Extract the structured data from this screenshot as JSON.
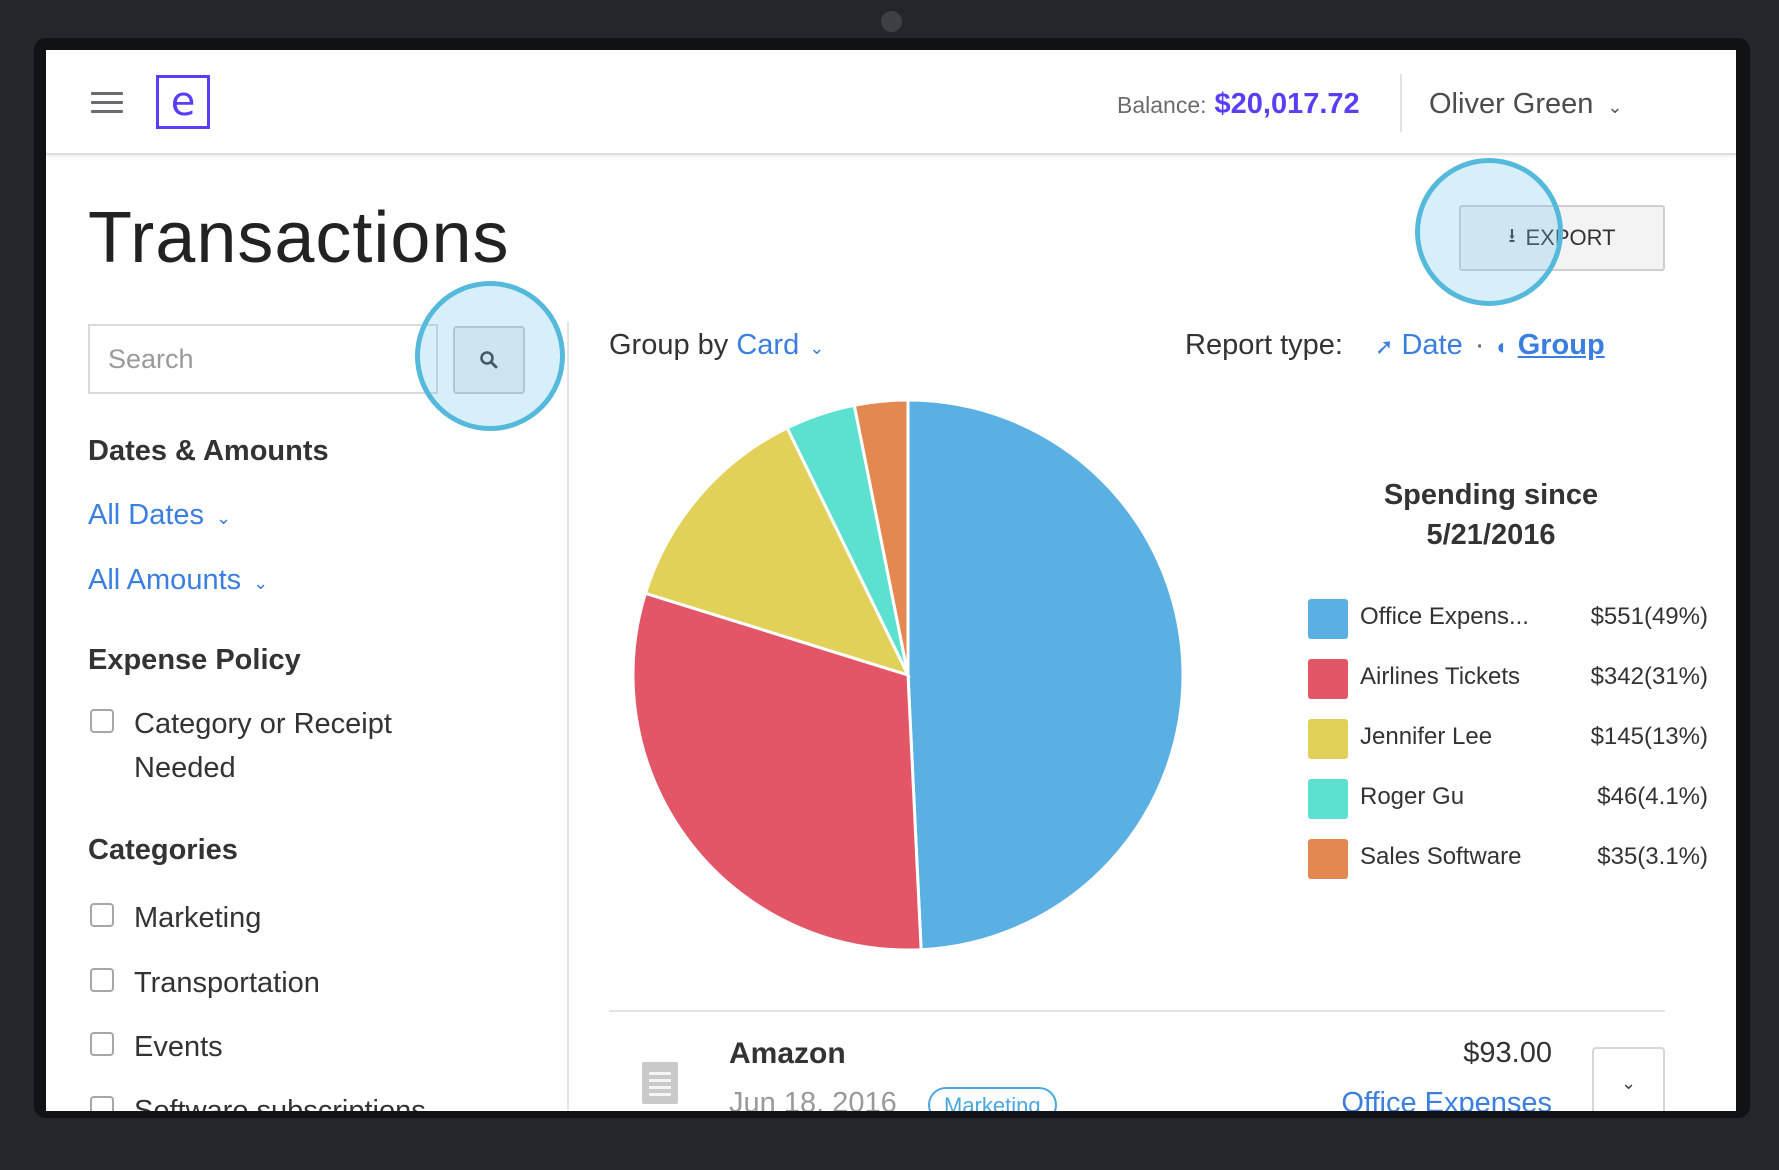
{
  "header": {
    "logo_letter": "e",
    "balance_label": "Balance:",
    "balance_value": "$20,017.72",
    "user_name": "Oliver Green"
  },
  "page": {
    "title": "Transactions",
    "export_label": "EXPORT"
  },
  "search": {
    "placeholder": "Search",
    "value": ""
  },
  "filters": {
    "dates_amounts_heading": "Dates & Amounts",
    "all_dates": "All Dates",
    "all_amounts": "All Amounts",
    "expense_policy_heading": "Expense Policy",
    "policy_option": "Category or Receipt Needed",
    "categories_heading": "Categories",
    "categories": [
      "Marketing",
      "Transportation",
      "Events",
      "Software subscriptions"
    ]
  },
  "report": {
    "group_by_label": "Group by",
    "group_by_value": "Card",
    "report_type_label": "Report type:",
    "date_option": "Date",
    "group_option": "Group",
    "separator": "·"
  },
  "legend_title": "Spending since 5/21/2016",
  "chart_data": {
    "type": "pie",
    "title": "Spending since 5/21/2016",
    "categories": [
      "Office Expens...",
      "Airlines Tickets",
      "Jennifer Lee",
      "Roger Gu",
      "Sales Software"
    ],
    "values": [
      551,
      342,
      145,
      46,
      35
    ],
    "value_labels": [
      "$551(49%)",
      "$342(31%)",
      "$145(13%)",
      "$46(4.1%)",
      "$35(3.1%)"
    ],
    "percent": [
      49,
      31,
      13,
      4.1,
      3.1
    ],
    "colors": [
      "#5aafe3",
      "#e35668",
      "#e2d159",
      "#5ce0d0",
      "#e48852"
    ],
    "legend": "right"
  },
  "transaction": {
    "merchant": "Amazon",
    "date": "Jun 18, 2016",
    "tag": "Marketing",
    "amount": "$93.00",
    "category": "Office Expenses"
  }
}
